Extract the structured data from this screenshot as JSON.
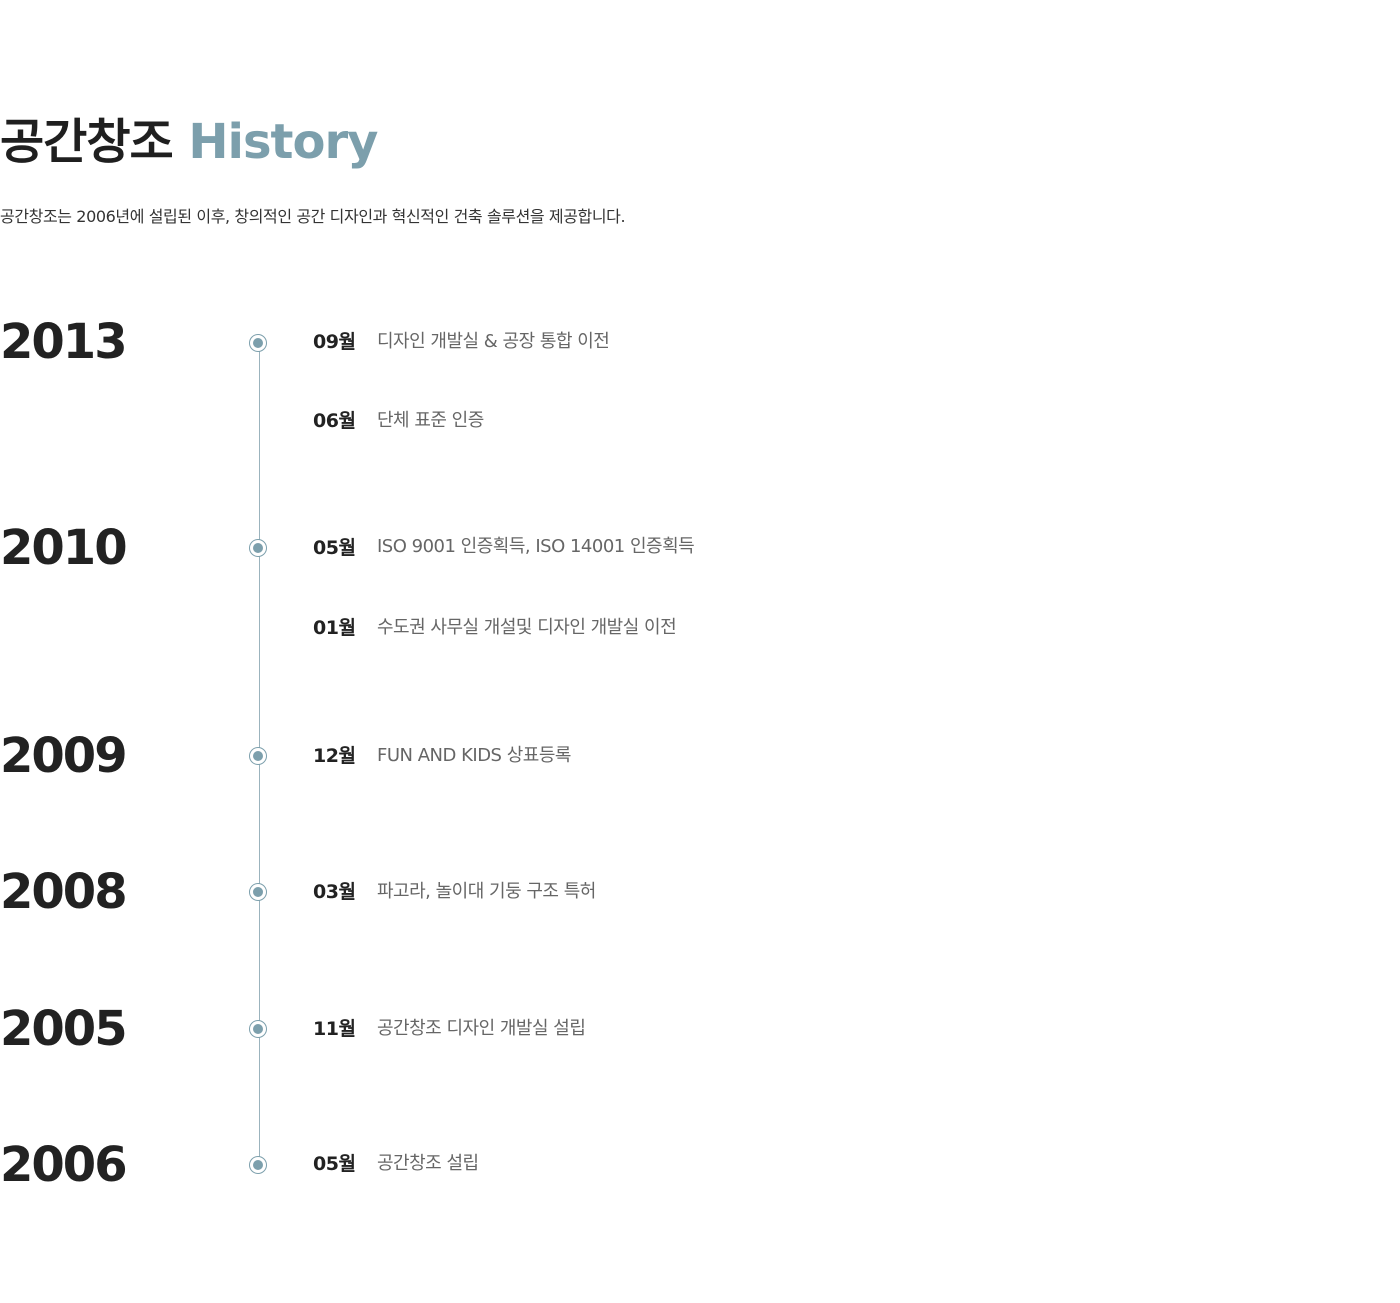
{
  "header": {
    "title_main": "공간창조",
    "title_accent": "History",
    "subtitle": "공간창조는 2006년에 설립된 이후, 창의적인 공간 디자인과 혁신적인 건축 솔루션을 제공합니다."
  },
  "colors": {
    "accent": "#7c9fac",
    "line": "#9bb3bd",
    "text_dark": "#222222",
    "text_muted": "#666666"
  },
  "timeline": [
    {
      "year": "2013",
      "events": [
        {
          "month": "09월",
          "text": "디자인 개발실 & 공장 통합 이전"
        },
        {
          "month": "06월",
          "text": "단체 표준 인증"
        }
      ]
    },
    {
      "year": "2010",
      "events": [
        {
          "month": "05월",
          "text": "ISO 9001 인증획득, ISO 14001 인증획득"
        },
        {
          "month": "01월",
          "text": "수도권 사무실 개설및 디자인 개발실 이전"
        }
      ]
    },
    {
      "year": "2009",
      "events": [
        {
          "month": "12월",
          "text": "FUN AND KIDS 상표등록"
        }
      ]
    },
    {
      "year": "2008",
      "events": [
        {
          "month": "03월",
          "text": "파고라, 놀이대 기둥 구조 특허"
        }
      ]
    },
    {
      "year": "2005",
      "events": [
        {
          "month": "11월",
          "text": "공간창조 디자인 개발실 설립"
        }
      ]
    },
    {
      "year": "2006",
      "events": [
        {
          "month": "05월",
          "text": "공간창조 설립"
        }
      ]
    }
  ]
}
